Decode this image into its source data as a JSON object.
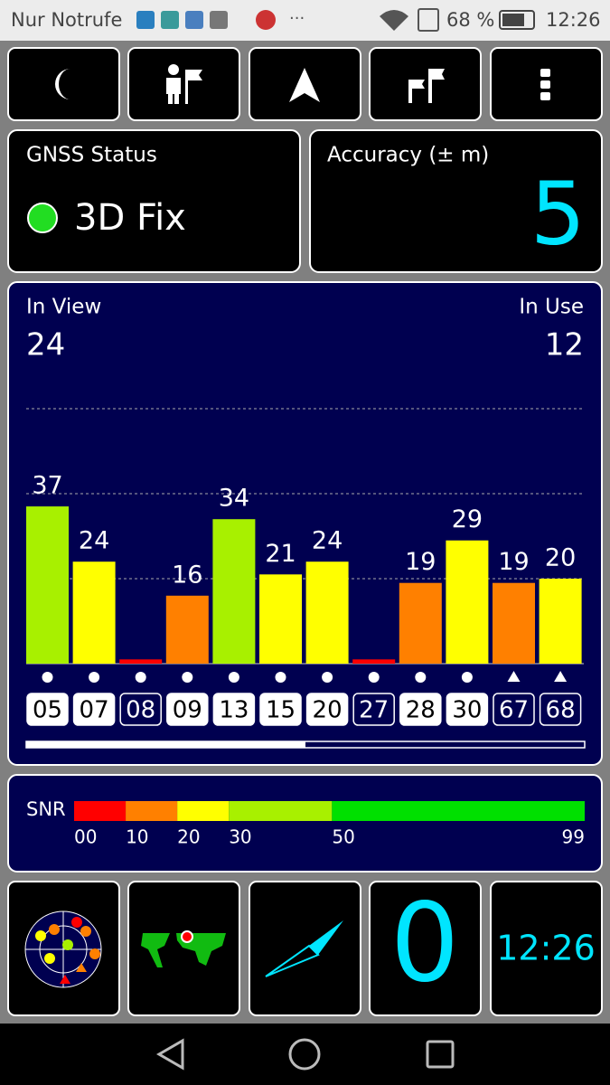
{
  "status_bar": {
    "carrier": "Nur Notrufe",
    "battery": "68 %",
    "time": "12:26"
  },
  "gnss_status": {
    "title": "GNSS Status",
    "fix": "3D Fix"
  },
  "accuracy": {
    "title": "Accuracy (± m)",
    "value": 5
  },
  "satellites": {
    "in_view_label": "In View",
    "in_view": 24,
    "in_use_label": "In Use",
    "in_use": 12,
    "ylim": [
      0,
      60
    ],
    "ids": [
      "05",
      "07",
      "08",
      "09",
      "13",
      "15",
      "20",
      "27",
      "28",
      "30",
      "67",
      "68"
    ],
    "values": [
      37,
      24,
      1,
      16,
      34,
      21,
      24,
      1,
      19,
      29,
      19,
      20
    ],
    "value_labels": [
      "37",
      "24",
      null,
      "16",
      "34",
      "21",
      "24",
      null,
      "19",
      "29",
      "19",
      "20"
    ],
    "used": [
      true,
      true,
      false,
      true,
      true,
      true,
      true,
      false,
      true,
      true,
      false,
      false
    ],
    "marker": [
      "dot",
      "dot",
      "dot",
      "dot",
      "dot",
      "dot",
      "dot",
      "dot",
      "dot",
      "dot",
      "triangle",
      "triangle"
    ]
  },
  "snr_legend": {
    "title": "SNR",
    "ticks": [
      {
        "value": 0,
        "label": "00"
      },
      10,
      20,
      30,
      50,
      99
    ],
    "colors": [
      "#ff0000",
      "#ff8000",
      "#ffff00",
      "#a8f000",
      "#00e000"
    ]
  },
  "tiles": {
    "counter": 0,
    "clock": "12:26"
  }
}
